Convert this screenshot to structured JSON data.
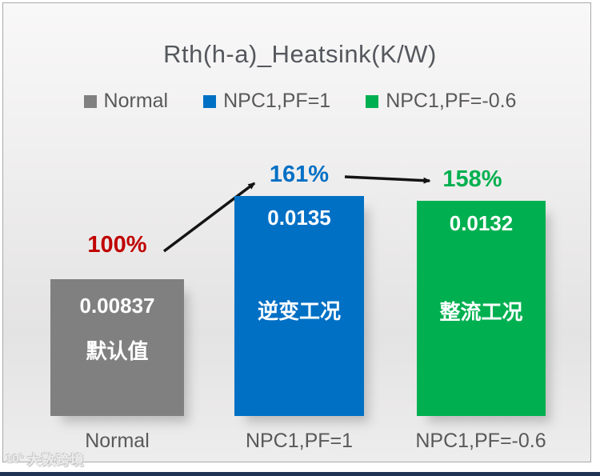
{
  "chart_data": {
    "type": "bar",
    "title": "Rth(h-a)_Heatsink(K/W)",
    "categories": [
      "Normal",
      "NPC1,PF=1",
      "NPC1,PF=-0.6"
    ],
    "values": [
      0.00837,
      0.0135,
      0.0132
    ],
    "value_labels": [
      "0.00837",
      "0.0135",
      "0.0132"
    ],
    "condition_labels": [
      "默认值",
      "逆变工况",
      "整流工况"
    ],
    "percent_labels": [
      "100%",
      "161%",
      "158%"
    ],
    "bar_colors": [
      "#808080",
      "#0070C5",
      "#00B050"
    ],
    "percent_colors": [
      "#C00000",
      "#0070C5",
      "#00B050"
    ],
    "legend": [
      {
        "label": "Normal",
        "color": "#808080"
      },
      {
        "label": "NPC1,PF=1",
        "color": "#0070C5"
      },
      {
        "label": "NPC1,PF=-0.6",
        "color": "#00B050"
      }
    ],
    "legend_position": "top",
    "grid": false,
    "annotations": [
      {
        "type": "arrow",
        "from_label": "100%",
        "to_label": "161%"
      },
      {
        "type": "arrow",
        "from_label": "161%",
        "to_label": "158%"
      }
    ]
  },
  "watermark": {
    "logo": "10°",
    "text": "大数跨境"
  }
}
